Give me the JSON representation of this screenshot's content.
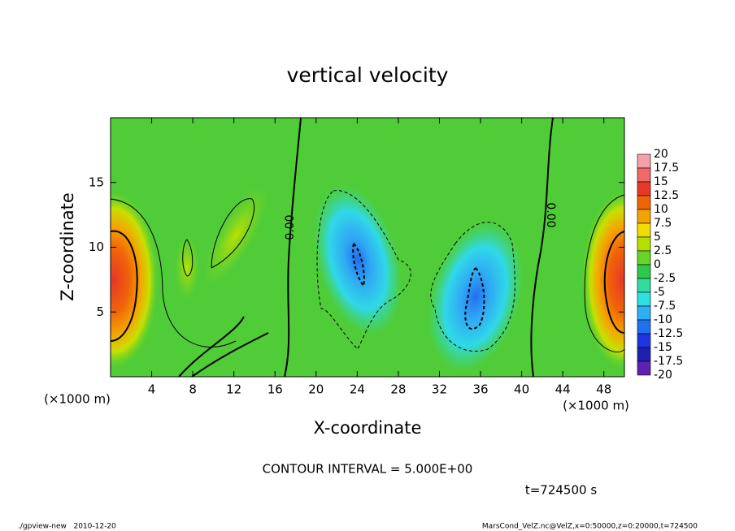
{
  "chart_data": {
    "type": "contour",
    "title": "vertical velocity",
    "xlabel": "X-coordinate",
    "ylabel": "Z-coordinate",
    "x_unit": "(×1000 m)",
    "y_unit": "(×1000 m)",
    "xlim": [
      0,
      50
    ],
    "ylim": [
      0,
      20
    ],
    "xticks": [
      4,
      8,
      12,
      16,
      20,
      24,
      28,
      32,
      36,
      40,
      44,
      48
    ],
    "yticks": [
      5,
      10,
      15
    ],
    "contour_labels": [
      "0.00",
      "0.00"
    ],
    "contour_interval_text": "CONTOUR INTERVAL = 5.000E+00",
    "time_text": "t=724500 s",
    "footer_left": "./gpview-new   2010-12-20",
    "footer_right": "MarsCond_VelZ.nc@VelZ,x=0:50000,z=0:20000,t=724500",
    "colorbar": {
      "levels": [
        20,
        17.5,
        15,
        12.5,
        10,
        7.5,
        5,
        2.5,
        0,
        -2.5,
        -5,
        -7.5,
        -10,
        -12.5,
        -15,
        -17.5,
        -20
      ],
      "colors": [
        "#f4a0a8",
        "#f06868",
        "#e83828",
        "#f06408",
        "#f4a400",
        "#f0dc00",
        "#b4e000",
        "#68d428",
        "#30c848",
        "#30dca0",
        "#30e0e0",
        "#30b0f4",
        "#2070f0",
        "#2034e0",
        "#2020b0",
        "#6020b0"
      ]
    }
  }
}
